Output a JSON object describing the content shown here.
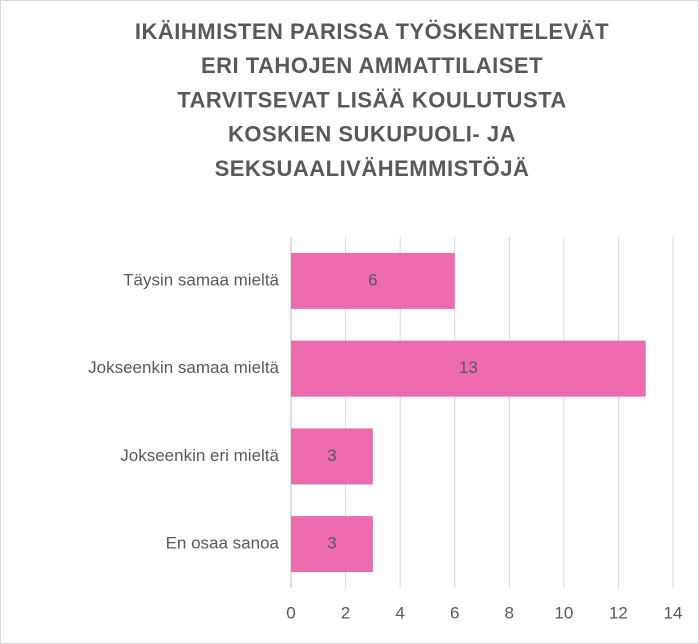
{
  "chart_data": {
    "type": "barh",
    "title": [
      "IKÄIHMISTEN PARISSA TYÖSKENTELEVÄT",
      "ERI TAHOJEN AMMATTILAISET",
      "TARVITSEVAT LISÄÄ KOULUTUSTA",
      "KOSKIEN SUKUPUOLI- JA",
      "SEKSUAALIVÄHEMMISTÖJÄ"
    ],
    "categories": [
      "Täysin samaa mieltä",
      "Jokseenkin samaa mieltä",
      "Jokseenkin eri mieltä",
      "En osaa sanoa"
    ],
    "values": [
      6,
      13,
      3,
      3
    ],
    "color": "#ee6aae",
    "xlim": [
      0,
      14
    ],
    "xticks": [
      0,
      2,
      4,
      6,
      8,
      10,
      12,
      14
    ],
    "grid": true
  }
}
